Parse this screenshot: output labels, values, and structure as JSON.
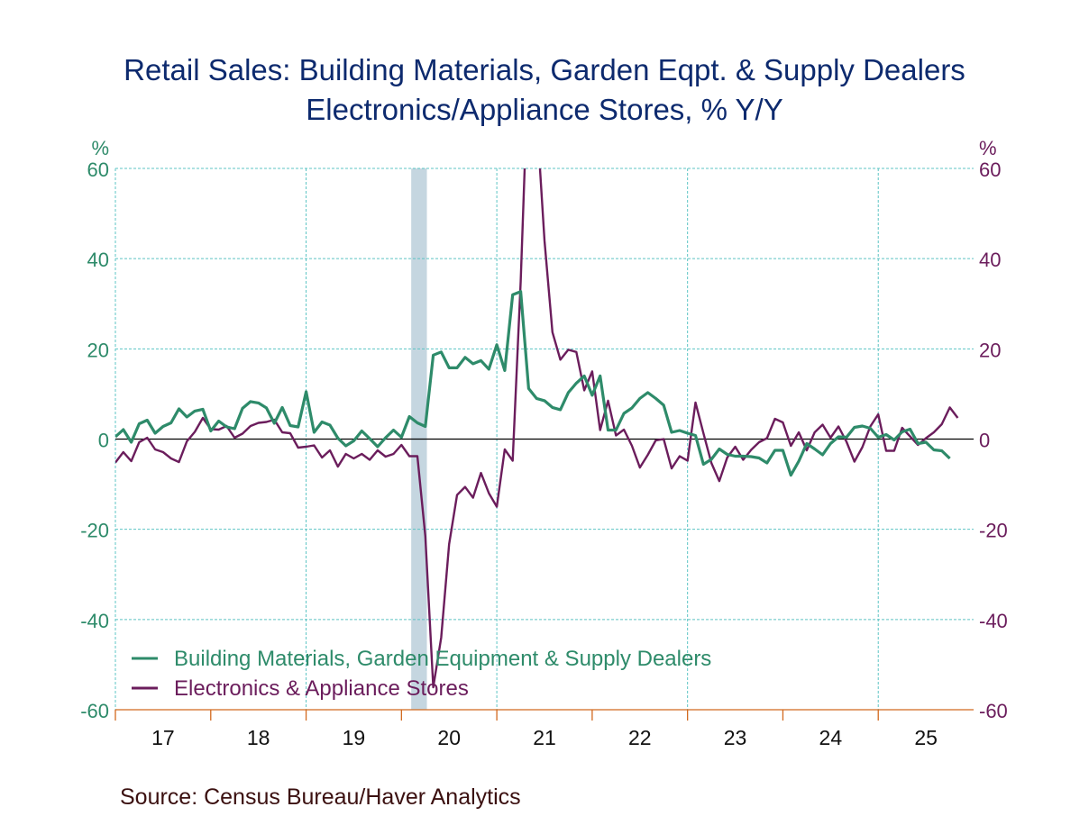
{
  "chart_data": {
    "type": "line",
    "title": "Retail Sales: Building Materials, Garden Eqpt. & Supply Dealers",
    "subtitle": "Electronics/Appliance Stores, % Y/Y",
    "left_axis": {
      "label": "%",
      "ylim": [
        -60,
        60
      ],
      "ticks": [
        60,
        40,
        20,
        0,
        -20,
        -40,
        -60
      ],
      "color": "#2e8b6a"
    },
    "right_axis": {
      "label": "%",
      "ylim": [
        -60,
        60
      ],
      "ticks": [
        60,
        40,
        20,
        0,
        -20,
        -40,
        -60
      ],
      "color": "#6b1d5c"
    },
    "x_ticks": [
      "17",
      "18",
      "19",
      "20",
      "21",
      "22",
      "23",
      "24",
      "25"
    ],
    "x_start": "2017-01",
    "frequency": "monthly",
    "recession_shading": {
      "start": "2020-02",
      "end": "2020-04",
      "color": "#c5d6e0"
    },
    "grid": true,
    "legend_position": "bottom-left",
    "series": [
      {
        "name": "Building Materials, Garden Equipment & Supply Dealers",
        "color": "#2e8b6a",
        "axis": "left",
        "values": [
          0.5,
          2.1,
          -0.7,
          3.4,
          4.2,
          1.3,
          2.8,
          3.6,
          6.7,
          4.9,
          6.2,
          6.6,
          1.8,
          4.0,
          2.7,
          2.3,
          6.8,
          8.3,
          8.0,
          6.9,
          3.5,
          7.0,
          3.0,
          2.7,
          10.5,
          1.5,
          3.8,
          3.1,
          0.2,
          -1.5,
          -0.4,
          1.8,
          0.1,
          -1.7,
          0.3,
          2.0,
          0.4,
          5.0,
          3.6,
          2.8,
          18.6,
          19.3,
          15.8,
          15.8,
          18.1,
          16.7,
          17.4,
          15.5,
          20.9,
          15.2,
          32.0,
          32.7,
          11.2,
          9.0,
          8.5,
          7.0,
          6.5,
          10.3,
          12.4,
          14.0,
          9.7,
          14.0,
          2.0,
          2.0,
          5.7,
          6.9,
          9.0,
          10.3,
          9.0,
          7.5,
          1.5,
          1.9,
          1.3,
          0.8,
          -5.6,
          -4.5,
          -2.2,
          -3.4,
          -3.8,
          -3.8,
          -3.9,
          -4.2,
          -5.3,
          -2.5,
          -2.5,
          -8.0,
          -4.9,
          -1.0,
          -2.2,
          -3.5,
          -1.0,
          0.5,
          0.4,
          2.6,
          2.9,
          2.4,
          0.4,
          1.0,
          -0.2,
          1.6,
          2.2,
          -1.0,
          -0.7,
          -2.4,
          -2.6,
          -4.3
        ]
      },
      {
        "name": "Electronics & Appliance Stores",
        "color": "#6b1d5c",
        "axis": "right",
        "values": [
          -5.2,
          -2.9,
          -4.9,
          -0.7,
          0.3,
          -2.3,
          -2.9,
          -4.3,
          -5.1,
          -0.5,
          1.6,
          4.7,
          2.2,
          2.1,
          2.9,
          0.3,
          1.2,
          2.9,
          3.6,
          3.8,
          4.3,
          1.5,
          1.3,
          -1.9,
          -1.7,
          -1.4,
          -4.1,
          -2.5,
          -6.1,
          -3.3,
          -4.3,
          -3.3,
          -4.6,
          -2.5,
          -3.9,
          -3.3,
          -1.3,
          -3.8,
          -3.8,
          -21.5,
          -55.0,
          -44.0,
          -23.3,
          -12.4,
          -10.6,
          -13.0,
          -7.5,
          -12.0,
          -15.0,
          -2.3,
          -4.8,
          35.0,
          85.0,
          72.0,
          44.0,
          23.7,
          17.6,
          19.8,
          19.3,
          10.8,
          15.0,
          2.0,
          8.5,
          0.8,
          2.1,
          -1.5,
          -6.3,
          -3.5,
          -0.3,
          0.0,
          -6.5,
          -3.8,
          -4.8,
          8.1,
          1.3,
          -5.3,
          -9.3,
          -4.1,
          -1.7,
          -4.6,
          -2.4,
          -0.7,
          0.2,
          4.5,
          3.7,
          -1.5,
          1.5,
          -2.5,
          1.5,
          3.2,
          0.3,
          2.8,
          -0.6,
          -5.0,
          -1.8,
          2.8,
          5.5,
          -2.6,
          -2.6,
          2.5,
          0.6,
          -1.3,
          0.2,
          1.5,
          3.3,
          7.0,
          4.7
        ]
      }
    ]
  },
  "source": "Source:  Census Bureau/Haver Analytics"
}
